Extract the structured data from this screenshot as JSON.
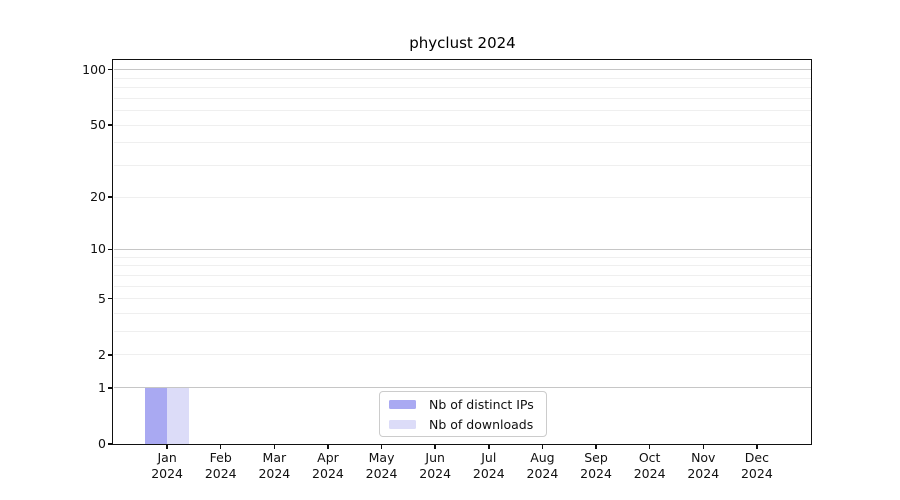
{
  "chart_data": {
    "type": "bar",
    "title": "phyclust 2024",
    "categories": [
      "Jan",
      "Feb",
      "Mar",
      "Apr",
      "May",
      "Jun",
      "Jul",
      "Aug",
      "Sep",
      "Oct",
      "Nov",
      "Dec"
    ],
    "xticklabels": [
      [
        "Jan",
        "2024"
      ],
      [
        "Feb",
        "2024"
      ],
      [
        "Mar",
        "2024"
      ],
      [
        "Apr",
        "2024"
      ],
      [
        "May",
        "2024"
      ],
      [
        "Jun",
        "2024"
      ],
      [
        "Jul",
        "2024"
      ],
      [
        "Aug",
        "2024"
      ],
      [
        "Sep",
        "2024"
      ],
      [
        "Oct",
        "2024"
      ],
      [
        "Nov",
        "2024"
      ],
      [
        "Dec",
        "2024"
      ]
    ],
    "series": [
      {
        "name": "Nb of distinct IPs",
        "color": "#a9a9f2",
        "values": [
          1,
          0,
          0,
          0,
          0,
          0,
          0,
          0,
          0,
          0,
          0,
          0
        ]
      },
      {
        "name": "Nb of downloads",
        "color": "#dcdcf8",
        "values": [
          1,
          0,
          0,
          0,
          0,
          0,
          0,
          0,
          0,
          0,
          0,
          0
        ]
      }
    ],
    "yscale": "log1p",
    "ylim": [
      0,
      112
    ],
    "yticks": [
      0,
      1,
      2,
      5,
      10,
      20,
      50,
      100
    ],
    "ytick_labels": [
      "0",
      "1",
      "2",
      "5",
      "10",
      "20",
      "50",
      "100"
    ],
    "major_gridlines": [
      1,
      10,
      100
    ],
    "minor_gridlines": [
      2,
      3,
      4,
      5,
      6,
      7,
      8,
      9,
      20,
      30,
      40,
      50,
      60,
      70,
      80,
      90
    ],
    "grid": "horizontal",
    "legend_position": "inside bottom-center",
    "colors": {
      "background": "#ffffff",
      "axis": "#111111",
      "text": "#111111",
      "major_grid": "#c6c6c6",
      "minor_grid": "#efefef",
      "legend_border": "#cccccc"
    }
  }
}
